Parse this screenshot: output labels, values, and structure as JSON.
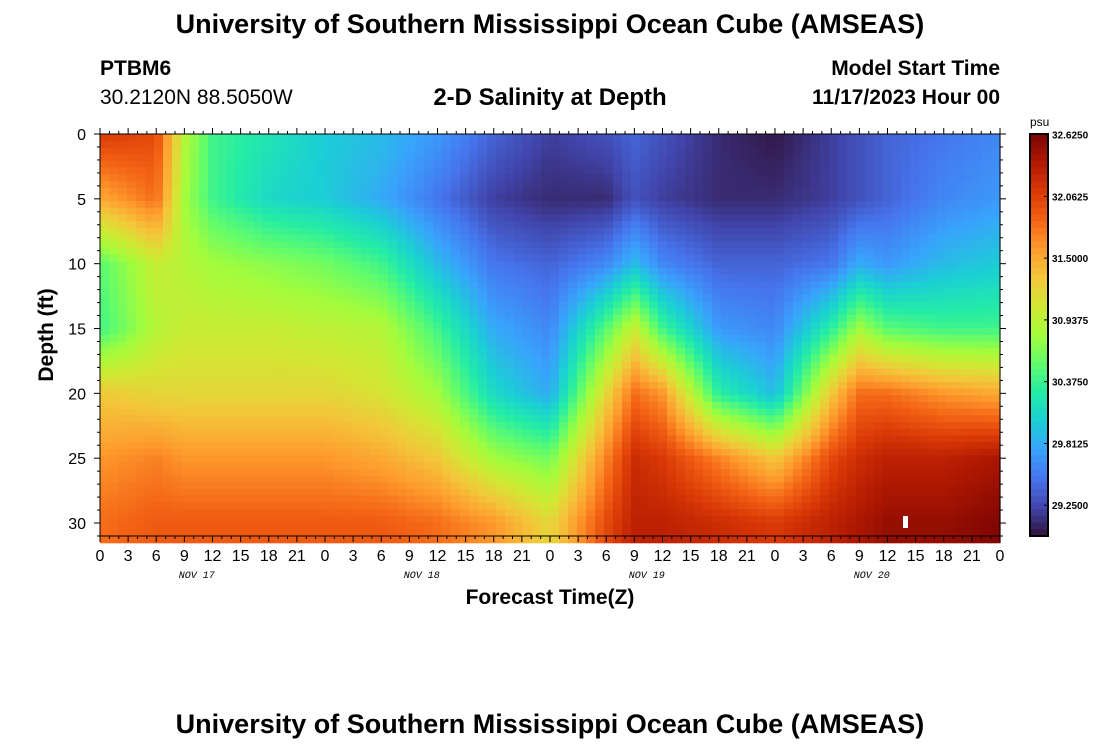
{
  "header": {
    "title": "University of Southern Mississippi Ocean Cube (AMSEAS)",
    "station": "PTBM6",
    "coordinates": "30.2120N  88.5050W",
    "plot_title": "2-D Salinity at Depth",
    "start_label": "Model Start Time",
    "start_value": "11/17/2023 Hour 00"
  },
  "footer": {
    "title": "University of Southern Mississippi Ocean Cube (AMSEAS)"
  },
  "chart_data": {
    "type": "heatmap",
    "title": "2-D Salinity at Depth",
    "xlabel": "Forecast Time(Z)",
    "ylabel": "Depth (ft)",
    "x_range_hours": [
      0,
      96
    ],
    "x_tick_step_hours": 3,
    "x_tick_labels": [
      "0",
      "3",
      "6",
      "9",
      "12",
      "15",
      "18",
      "21",
      "0",
      "3",
      "6",
      "9",
      "12",
      "15",
      "18",
      "21",
      "0",
      "3",
      "6",
      "9",
      "12",
      "15",
      "18",
      "21",
      "0",
      "3",
      "6",
      "9",
      "12",
      "15",
      "18",
      "21",
      "0"
    ],
    "day_labels": [
      {
        "label": "NOV 17",
        "hour": 10
      },
      {
        "label": "NOV 18",
        "hour": 34
      },
      {
        "label": "NOV 19",
        "hour": 58
      },
      {
        "label": "NOV 20",
        "hour": 82
      }
    ],
    "y_range": [
      0,
      31
    ],
    "y_ticks": [
      0,
      5,
      10,
      15,
      20,
      25,
      30
    ],
    "colorbar": {
      "unit": "psu",
      "min": 28.97,
      "max": 32.63,
      "tick_labels": [
        "32.6250",
        "32.0625",
        "31.5000",
        "30.9375",
        "30.3750",
        "29.8125",
        "29.2500"
      ],
      "tick_values": [
        32.625,
        32.0625,
        31.5,
        30.9375,
        30.375,
        29.8125,
        29.25
      ],
      "colors": [
        "#30123b",
        "#4145ab",
        "#4675ed",
        "#39a2fc",
        "#1bcfd4",
        "#24eca6",
        "#61fc6c",
        "#a4fc3b",
        "#d1e834",
        "#f3c63a",
        "#fe9b2d",
        "#f36315",
        "#d93806",
        "#b11901",
        "#7a0403"
      ]
    },
    "profile_depth_ft": [
      0,
      5,
      10,
      15,
      20,
      25,
      30
    ],
    "profile_hours": [
      0,
      6,
      9,
      12,
      18,
      24,
      30,
      36,
      42,
      48,
      54,
      57,
      60,
      66,
      72,
      78,
      81,
      84,
      90,
      96
    ],
    "salinity_psu": [
      [
        32.1,
        31.5,
        30.5,
        30.4,
        31.3,
        31.6,
        31.8
      ],
      [
        32.0,
        31.8,
        31.0,
        30.9,
        31.2,
        31.7,
        31.9
      ],
      [
        30.9,
        30.8,
        30.9,
        31.0,
        31.2,
        31.6,
        31.9
      ],
      [
        30.4,
        30.4,
        30.8,
        31.0,
        31.2,
        31.6,
        31.9
      ],
      [
        30.2,
        30.1,
        30.7,
        31.0,
        31.2,
        31.6,
        31.9
      ],
      [
        30.0,
        30.0,
        30.6,
        30.95,
        31.2,
        31.6,
        31.9
      ],
      [
        29.9,
        29.8,
        30.4,
        30.9,
        31.1,
        31.5,
        31.9
      ],
      [
        29.7,
        29.5,
        29.9,
        30.4,
        30.8,
        31.3,
        31.8
      ],
      [
        29.4,
        29.2,
        29.5,
        29.8,
        30.1,
        30.8,
        31.6
      ],
      [
        29.2,
        29.1,
        29.4,
        29.6,
        29.8,
        30.6,
        31.2
      ],
      [
        29.3,
        29.1,
        29.6,
        30.5,
        31.2,
        31.7,
        32.0
      ],
      [
        29.4,
        29.3,
        29.9,
        31.0,
        31.8,
        32.2,
        32.3
      ],
      [
        29.3,
        29.2,
        29.6,
        30.4,
        31.6,
        32.1,
        32.3
      ],
      [
        29.1,
        29.1,
        29.4,
        29.7,
        30.3,
        31.7,
        32.2
      ],
      [
        29.0,
        29.1,
        29.4,
        29.6,
        29.9,
        31.3,
        32.1
      ],
      [
        29.2,
        29.2,
        29.5,
        30.3,
        31.3,
        32.0,
        32.3
      ],
      [
        29.3,
        29.3,
        29.8,
        30.8,
        31.8,
        32.2,
        32.4
      ],
      [
        29.4,
        29.4,
        29.7,
        30.5,
        31.8,
        32.3,
        32.5
      ],
      [
        29.5,
        29.6,
        29.9,
        30.4,
        31.6,
        32.3,
        32.5
      ],
      [
        29.6,
        29.7,
        30.0,
        30.4,
        31.5,
        32.4,
        32.6
      ]
    ]
  }
}
